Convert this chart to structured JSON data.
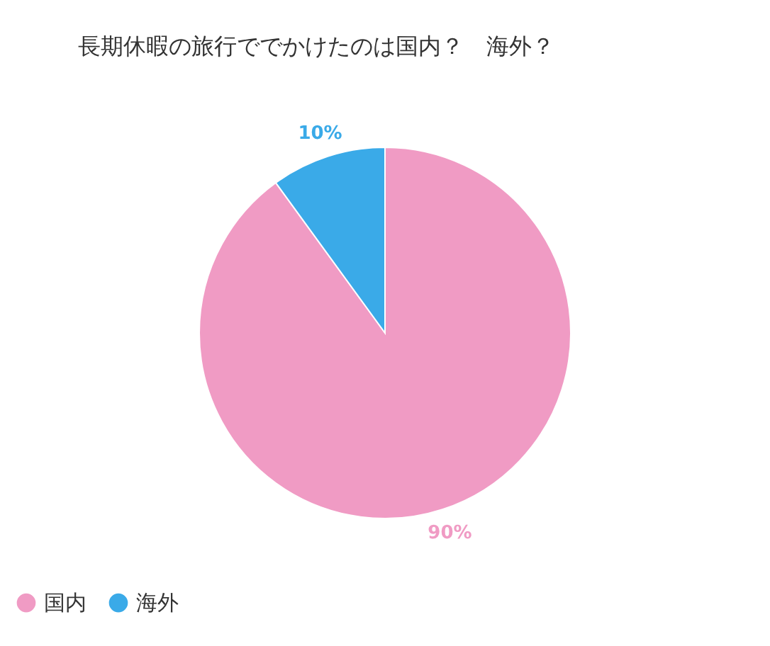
{
  "chart_data": {
    "type": "pie",
    "title": "長期休暇の旅行ででかけたのは国内？　海外？",
    "categories": [
      "国内",
      "海外"
    ],
    "values": [
      90,
      10
    ],
    "colors": [
      "#f09bc4",
      "#3aaae8"
    ],
    "value_labels": [
      "90%",
      "10%"
    ],
    "legend": "bottom"
  }
}
